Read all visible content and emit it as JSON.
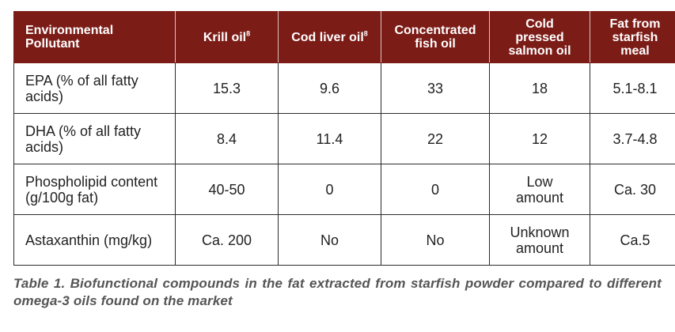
{
  "table": {
    "headers": [
      {
        "text": "Environmental Pollutant",
        "sup": ""
      },
      {
        "text": "Krill oil",
        "sup": "8"
      },
      {
        "text": "Cod liver oil",
        "sup": "8"
      },
      {
        "text": "Concentrated fish oil",
        "sup": ""
      },
      {
        "text": "Cold pressed salmon oil",
        "sup": ""
      },
      {
        "text": "Fat from starfish meal",
        "sup": ""
      }
    ],
    "rows": [
      [
        "EPA (% of all fatty acids)",
        "15.3",
        "9.6",
        "33",
        "18",
        "5.1-8.1"
      ],
      [
        "DHA (% of all fatty acids)",
        "8.4",
        "11.4",
        "22",
        "12",
        "3.7-4.8"
      ],
      [
        "Phospholipid content (g/100g fat)",
        "40-50",
        "0",
        "0",
        "Low amount",
        "Ca. 30"
      ],
      [
        "Astaxanthin (mg/kg)",
        "Ca. 200",
        "No",
        "No",
        "Unknown amount",
        "Ca.5"
      ]
    ]
  },
  "caption": "Table 1. Biofunctional compounds in the fat extracted from starfish powder compared to different omega-3 oils found on the market"
}
